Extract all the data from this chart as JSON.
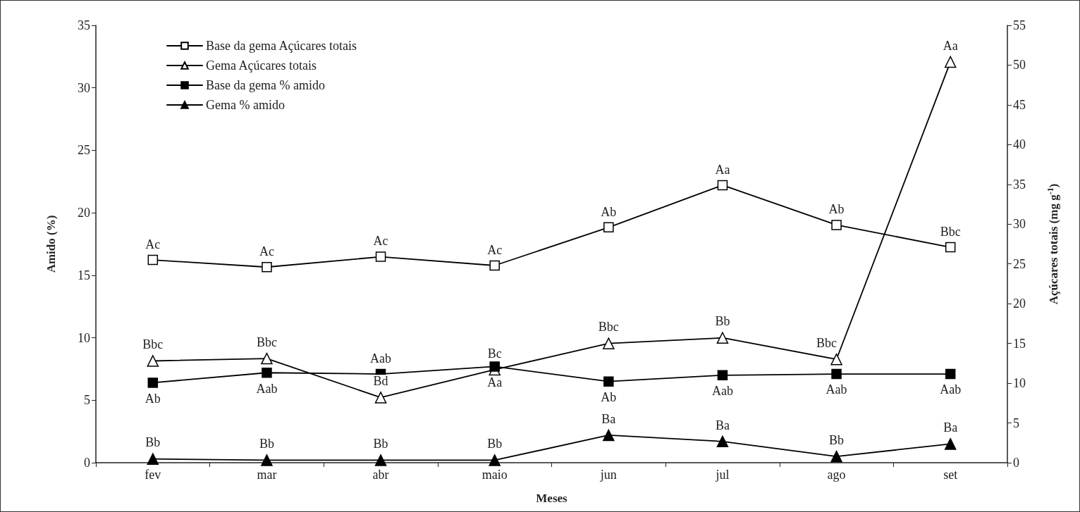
{
  "chart_data": {
    "type": "line",
    "xlabel": "Meses",
    "ylabel": "Amido (%)",
    "y2label": "Açúcares totais (mg g$^{-1}$)",
    "categories": [
      "fev",
      "mar",
      "abr",
      "maio",
      "jun",
      "jul",
      "ago",
      "set"
    ],
    "series": [
      {
        "name": "Base da gema Açúcares totais",
        "color": "#000000",
        "marker": "square",
        "axis": "y2",
        "values": [
          25.5,
          24.6,
          25.9,
          24.8,
          29.6,
          34.9,
          29.9,
          27.1
        ],
        "value_labels": [
          "Ac",
          "Ac",
          "Ac",
          "Ac",
          "Ab",
          "Aa",
          "Ab",
          "Bbc"
        ]
      },
      {
        "name": "Gema Açúcares totais",
        "color": "#000000",
        "marker": "triangle",
        "axis": "y2",
        "values": [
          12.8,
          13.1,
          8.2,
          11.7,
          15.0,
          15.7,
          13.0,
          50.4
        ],
        "value_labels": [
          "Bbc",
          "Bbc",
          "Bd",
          "Bc",
          "Bbc",
          "Bb",
          "Bbc",
          "Aa"
        ]
      },
      {
        "name": "Base da gema % amido",
        "color": "#000000",
        "marker": "square",
        "values": [
          6.4,
          7.2,
          7.1,
          7.7,
          6.5,
          7.0,
          7.1,
          7.1
        ],
        "value_labels": [
          "Ab",
          "Aab",
          "Aab",
          "Aa",
          "Ab",
          "Aab",
          "Aab",
          "Aab"
        ]
      },
      {
        "name": "Gema % amido",
        "color": "#000000",
        "marker": "triangle",
        "values": [
          0.3,
          0.2,
          0.2,
          0.2,
          2.2,
          1.7,
          0.5,
          1.5
        ],
        "value_labels": [
          "Bb",
          "Bb",
          "Bb",
          "Bb",
          "Ba",
          "Ba",
          "Bb",
          "Ba"
        ]
      }
    ],
    "ylim": [
      0,
      35
    ],
    "yticks": [
      0,
      5,
      10,
      15,
      20,
      25,
      30,
      35
    ],
    "y2lim": [
      0,
      55
    ],
    "y2ticks": [
      0,
      5,
      10,
      15,
      20,
      25,
      30,
      35,
      40,
      45,
      50,
      55
    ],
    "grid": false,
    "legend": "top left",
    "line_style": "solid"
  }
}
